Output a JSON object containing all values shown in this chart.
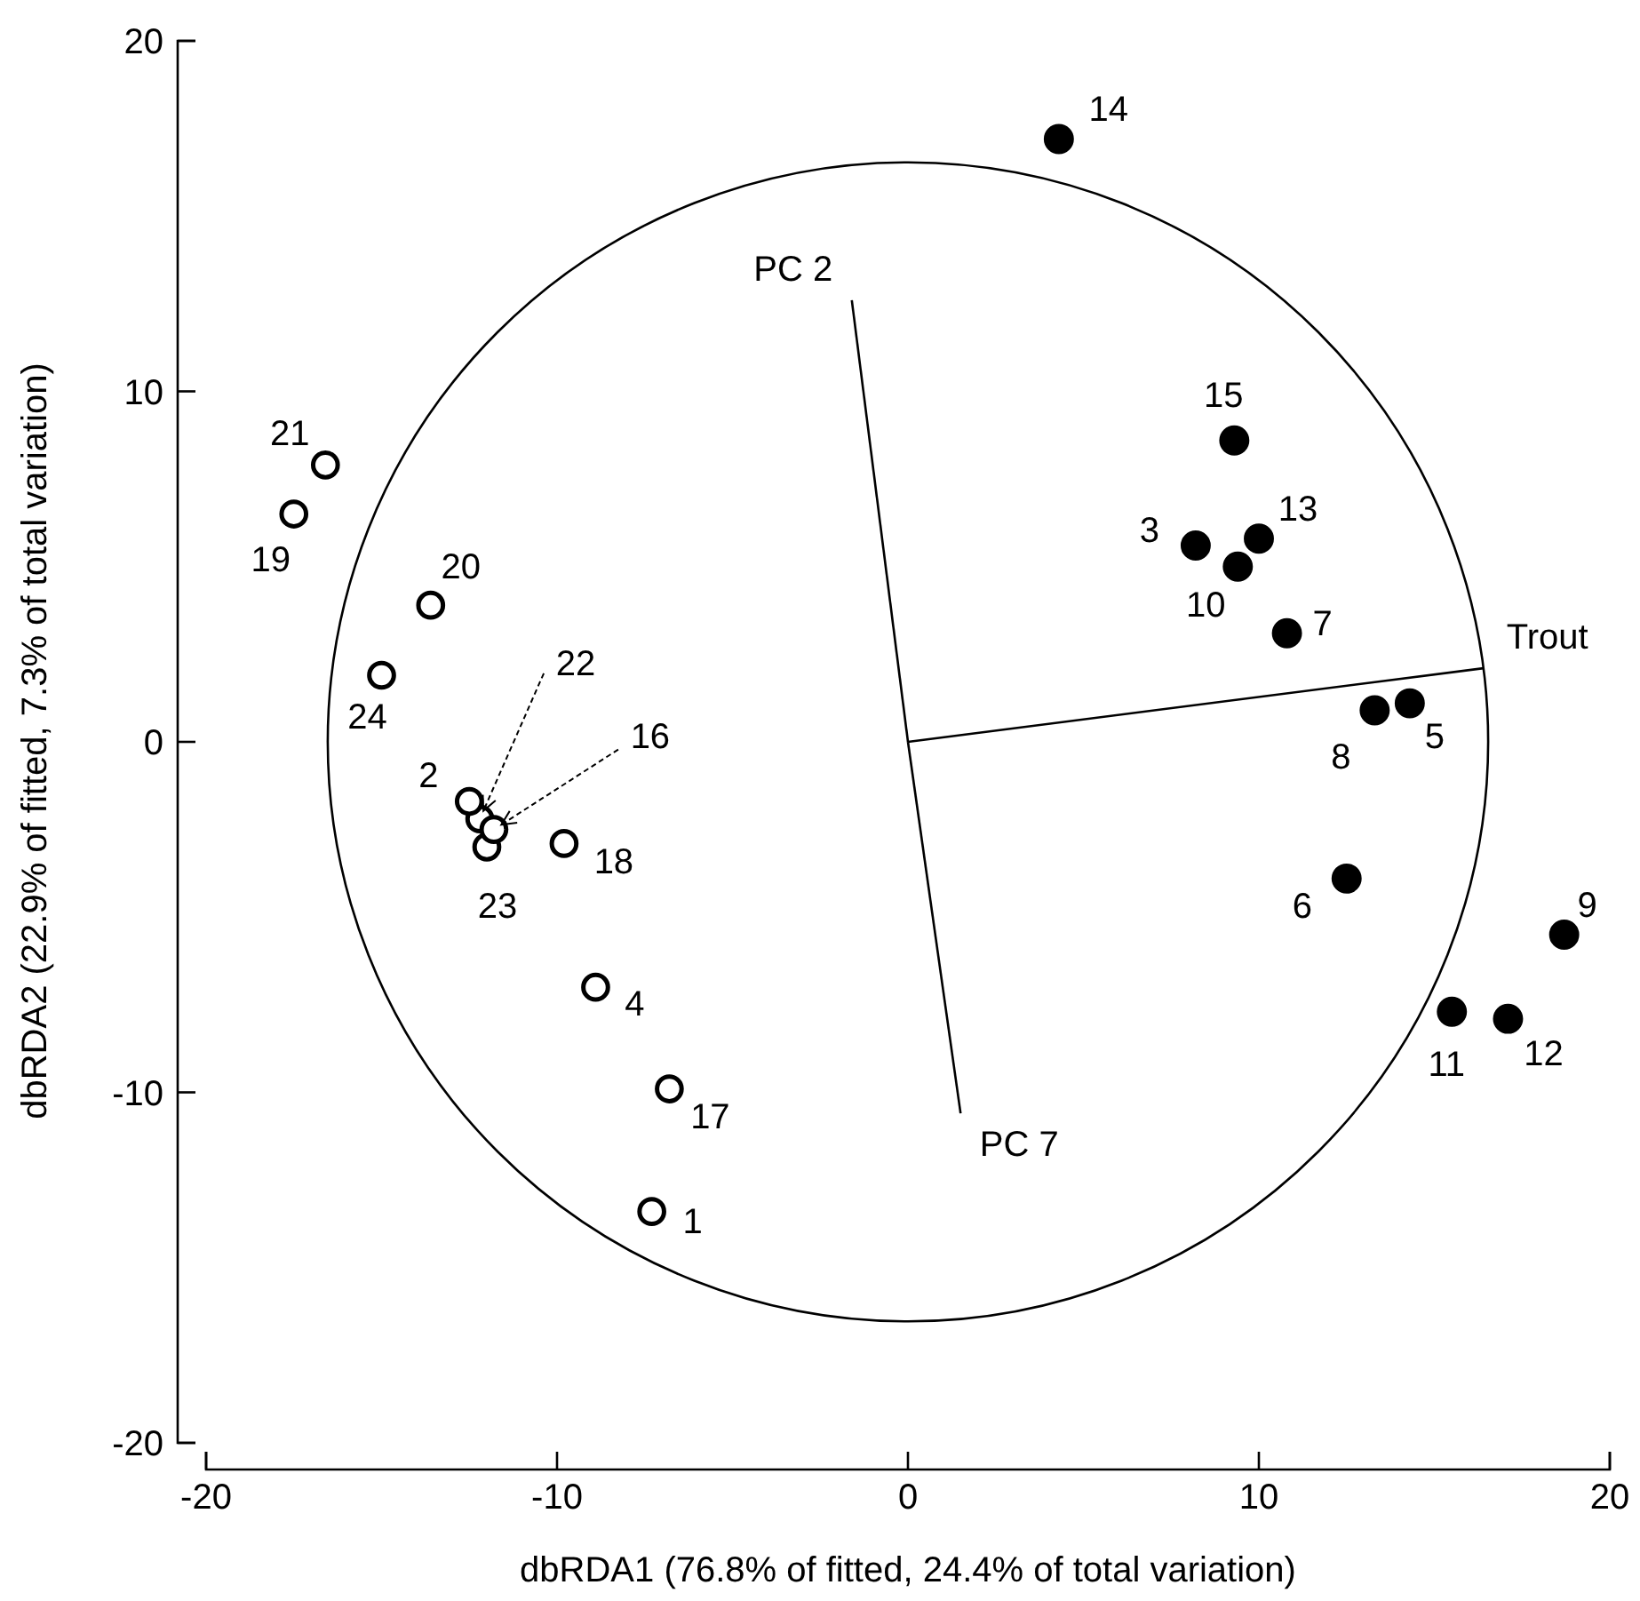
{
  "chart_data": {
    "type": "scatter",
    "xlabel": "dbRDA1 (76.8% of fitted, 24.4% of total variation)",
    "ylabel": "dbRDA2 (22.9% of fitted, 7.3% of total variation)",
    "xlim": [
      -20,
      20
    ],
    "ylim": [
      -20,
      20
    ],
    "xticks": [
      -20,
      -10,
      0,
      10,
      20
    ],
    "yticks": [
      -20,
      -10,
      0,
      10,
      20
    ],
    "grid": false,
    "series": [
      {
        "color": "#000000",
        "marker": "circle",
        "x": [
          -7.3,
          -12.5,
          -8.9,
          -11.8,
          -6.8,
          -9.8,
          -17.5,
          -13.6,
          -16.6,
          -12.2,
          -12.0,
          -15.0
        ],
        "values": [
          -13.4,
          -1.7,
          -7.0,
          -2.5,
          -9.9,
          -2.9,
          6.5,
          3.9,
          7.9,
          -2.2,
          -3.0,
          1.9
        ]
      },
      {
        "color": "#000000",
        "marker": "circle",
        "x": [
          8.2,
          14.3,
          12.5,
          10.8,
          13.3,
          18.7,
          9.4,
          15.5,
          17.1,
          10.0,
          4.3,
          9.3
        ],
        "values": [
          5.6,
          1.1,
          -3.9,
          3.1,
          0.9,
          -5.5,
          5.0,
          -7.7,
          -7.9,
          5.8,
          17.2,
          8.6
        ]
      },
      {
        "type": "line",
        "color": "#000000",
        "x": [
          0,
          16.4
        ],
        "values": [
          0,
          2.1
        ]
      },
      {
        "type": "line",
        "color": "#000000",
        "marker": "none",
        "x": [
          0,
          -1.6
        ],
        "values": [
          0,
          12.6
        ]
      },
      {
        "type": "line",
        "color": "#000000",
        "marker": "none",
        "x": [
          0,
          1.5
        ],
        "values": [
          0,
          -10.6
        ]
      }
    ],
    "annotations": [
      {
        "text": "1",
        "x": -7.3,
        "y": -13.4
      },
      {
        "text": "2",
        "x": -12.5,
        "y": -1.7
      },
      {
        "text": "4",
        "x": -8.9,
        "y": -7.0
      },
      {
        "text": "16",
        "x": -11.8,
        "y": -2.5
      },
      {
        "text": "17",
        "x": -6.8,
        "y": -9.9
      },
      {
        "text": "18",
        "x": -9.8,
        "y": -2.9
      },
      {
        "text": "19",
        "x": -17.5,
        "y": 6.5
      },
      {
        "text": "20",
        "x": -13.6,
        "y": 3.9
      },
      {
        "text": "21",
        "x": -16.6,
        "y": 7.9
      },
      {
        "text": "22",
        "x": -12.2,
        "y": -2.2
      },
      {
        "text": "23",
        "x": -12.0,
        "y": -3.0
      },
      {
        "text": "24",
        "x": -15.0,
        "y": 1.9
      },
      {
        "text": "3",
        "x": 8.2,
        "y": 5.6
      },
      {
        "text": "5",
        "x": 14.3,
        "y": 1.1
      },
      {
        "text": "6",
        "x": 12.5,
        "y": -3.9
      },
      {
        "text": "7",
        "x": 10.8,
        "y": 3.1
      },
      {
        "text": "8",
        "x": 13.3,
        "y": 0.9
      },
      {
        "text": "9",
        "x": 18.7,
        "y": -5.5
      },
      {
        "text": "10",
        "x": 9.4,
        "y": 5.0
      },
      {
        "text": "11",
        "x": 15.5,
        "y": -7.7
      },
      {
        "text": "12",
        "x": 17.1,
        "y": -7.9
      },
      {
        "text": "13",
        "x": 10.0,
        "y": 5.8
      },
      {
        "text": "14",
        "x": 4.3,
        "y": 17.2
      },
      {
        "text": "15",
        "x": 9.3,
        "y": 8.6
      },
      {
        "text": "Trout",
        "x": 16.4,
        "y": 2.1
      },
      {
        "text": "PC 2",
        "x": -1.6,
        "y": 12.6
      },
      {
        "text": "PC 7",
        "x": 1.5,
        "y": -10.6
      }
    ]
  }
}
